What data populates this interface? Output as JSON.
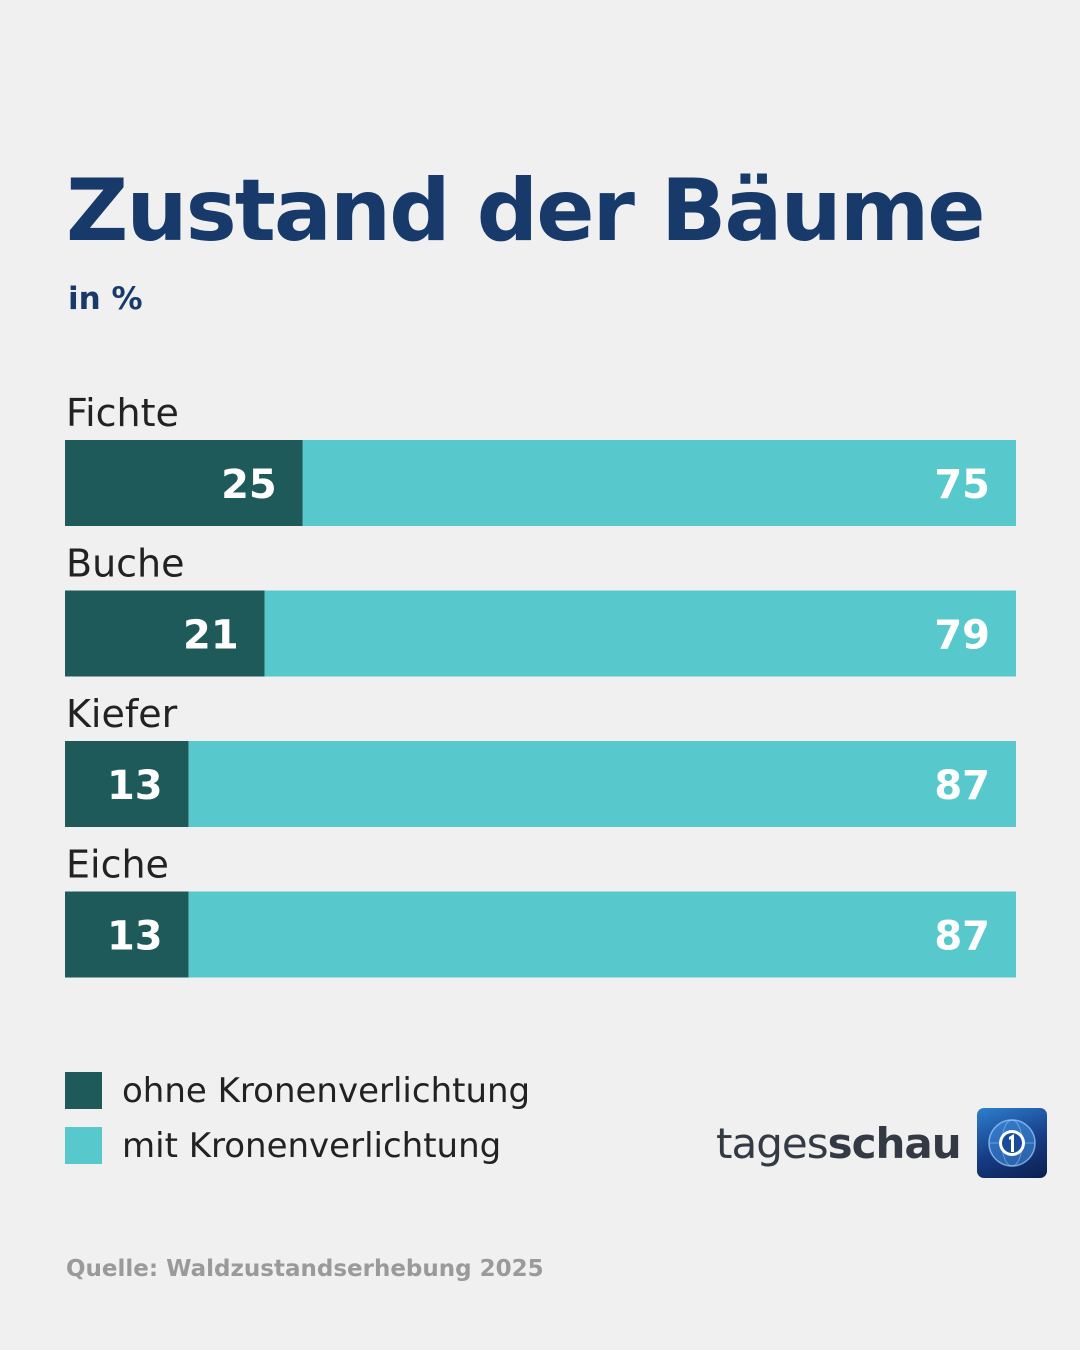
{
  "header": {
    "title": "Zustand der Bäume",
    "subtitle": "in %"
  },
  "chart_data": {
    "type": "bar",
    "stacked": true,
    "orientation": "horizontal",
    "categories": [
      "Fichte",
      "Buche",
      "Kiefer",
      "Eiche"
    ],
    "series": [
      {
        "name": "ohne Kronenverlichtung",
        "values": [
          25,
          21,
          13,
          13
        ],
        "color": "#1f5a5a"
      },
      {
        "name": "mit Kronenverlichtung",
        "values": [
          75,
          79,
          87,
          87
        ],
        "color": "#57c9cc"
      }
    ],
    "xlim": [
      0,
      100
    ],
    "title": "Zustand der Bäume",
    "unit": "in %",
    "legend_position": "bottom-left",
    "grid": false
  },
  "legend": {
    "items": [
      {
        "label": "ohne Kronenverlichtung",
        "color": "#1f5a5a"
      },
      {
        "label": "mit Kronenverlichtung",
        "color": "#57c9cc"
      }
    ]
  },
  "brand": {
    "text_regular": "tages",
    "text_bold": "schau",
    "logo_icon": "tagesschau-1-globe-icon"
  },
  "footer": {
    "source": "Quelle: Waldzustandserhebung 2025"
  }
}
